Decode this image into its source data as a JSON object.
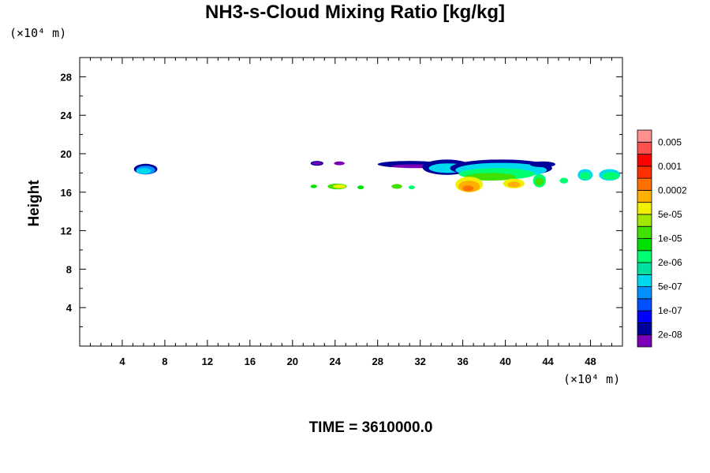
{
  "chart_data": {
    "type": "heatmap",
    "title": "NH3-s-Cloud Mixing Ratio [kg/kg]",
    "ylabel": "Height",
    "x_unit_label": "(×10⁴ m)",
    "y_unit_label": "(×10⁴ m)",
    "x_ticks": [
      "4",
      "8",
      "12",
      "16",
      "20",
      "24",
      "28",
      "32",
      "36",
      "40",
      "44",
      "48"
    ],
    "y_ticks": [
      "4",
      "8",
      "12",
      "16",
      "20",
      "24",
      "28"
    ],
    "xlim": [
      0,
      51
    ],
    "ylim": [
      0,
      30
    ],
    "colorbar": {
      "colors": [
        "#7a00b8",
        "#00009a",
        "#0000ff",
        "#0050ff",
        "#0090ff",
        "#00d8f0",
        "#00e0a0",
        "#00ff70",
        "#00e000",
        "#40e000",
        "#a0e800",
        "#f0f000",
        "#ffb000",
        "#ff7000",
        "#ff3000",
        "#ff0000",
        "#ff5050",
        "#ff9090"
      ],
      "labels": [
        "2e-08",
        "1e-07",
        "5e-07",
        "2e-06",
        "1e-05",
        "5e-05",
        "0.0002",
        "0.001",
        "0.005"
      ]
    },
    "cloud_regions": [
      {
        "x": [
          5.2,
          7.3
        ],
        "y": [
          17.9,
          18.9
        ],
        "max_level": "5e-07"
      },
      {
        "x": [
          21.7,
          23.0
        ],
        "y": [
          18.8,
          19.2
        ],
        "max_level": "2e-08"
      },
      {
        "x": [
          22.5,
          26.5
        ],
        "y": [
          16.3,
          16.8
        ],
        "max_level": "0.0002"
      },
      {
        "x": [
          28.0,
          51.0
        ],
        "y": [
          16.0,
          19.4
        ],
        "max_level": "0.001"
      }
    ]
  },
  "footer": {
    "time_label": "TIME = 3610000.0"
  }
}
